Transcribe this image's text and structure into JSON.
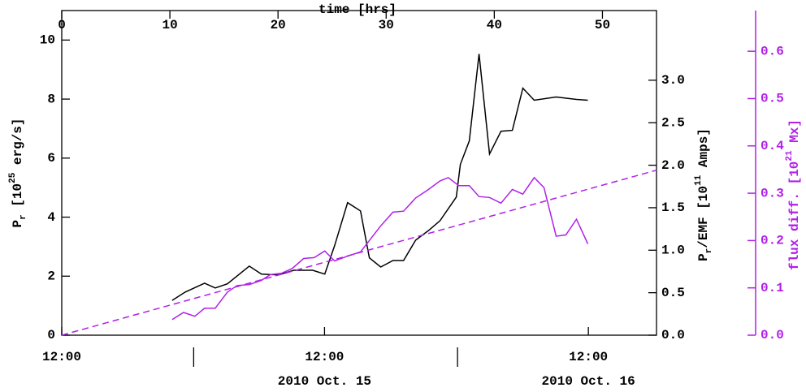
{
  "chart_data": {
    "type": "line",
    "xlabel": "time [hrs]",
    "ylabel": [
      "P",
      "r",
      " [10",
      "25",
      " erg/s]"
    ],
    "y2label": [
      "P",
      "r",
      "/EMF [10",
      "11",
      " Amps]"
    ],
    "y3label": [
      "flux diff. [10",
      "21",
      " Mx]"
    ],
    "y3color": "#b020e8",
    "xlim": [
      0,
      55
    ],
    "xticks": [
      0,
      10,
      20,
      30,
      40,
      50
    ],
    "ylim": [
      0,
      11
    ],
    "yticks": [
      0,
      2,
      4,
      6,
      8,
      10
    ],
    "y2lim": [
      0,
      3.82
    ],
    "y2ticks": [
      {
        "value": 0,
        "label": "0.0"
      },
      {
        "value": 0.5,
        "label": "0.5"
      },
      {
        "value": 1,
        "label": "1.0"
      },
      {
        "value": 1.5,
        "label": "1.5"
      },
      {
        "value": 2,
        "label": "2.0"
      },
      {
        "value": 2.5,
        "label": "2.5"
      },
      {
        "value": 3,
        "label": "3.0"
      }
    ],
    "y3lim": [
      0,
      0.686
    ],
    "y3ticks": [
      {
        "value": 0,
        "label": "0.0"
      },
      {
        "value": 0.1,
        "label": "0.1"
      },
      {
        "value": 0.2,
        "label": "0.2"
      },
      {
        "value": 0.3,
        "label": "0.3"
      },
      {
        "value": 0.4,
        "label": "0.4"
      },
      {
        "value": 0.5,
        "label": "0.5"
      },
      {
        "value": 0.6,
        "label": "0.6"
      }
    ],
    "time_ticks": [
      {
        "value": 0,
        "label": "12:00"
      },
      {
        "value": 24.3,
        "label": "12:00"
      },
      {
        "value": 48.7,
        "label": "12:00"
      }
    ],
    "day_ticks": [
      12.2,
      36.6
    ],
    "dates": [
      {
        "value": 24.3,
        "label": "2010 Oct. 15"
      },
      {
        "value": 48.7,
        "label": "2010 Oct. 16"
      }
    ],
    "series": [
      {
        "color": "#000000",
        "axis": "y",
        "x": [
          10.21,
          11.41,
          13.21,
          14.19,
          15.32,
          17.34,
          18.47,
          20.05,
          21.47,
          23.2,
          24.32,
          25.23,
          26.43,
          27.63,
          28.45,
          29.5,
          30.63,
          31.61,
          32.73,
          33.93,
          34.98,
          36.49,
          36.86,
          37.69,
          38.59,
          39.56,
          40.62,
          41.67,
          42.64,
          43.69,
          45.72,
          47.6,
          48.65
        ],
        "values": [
          1.18,
          1.46,
          1.76,
          1.6,
          1.74,
          2.34,
          2.07,
          2.04,
          2.2,
          2.2,
          2.07,
          3.03,
          4.49,
          4.21,
          2.62,
          2.31,
          2.53,
          2.53,
          3.22,
          3.55,
          3.88,
          4.68,
          5.79,
          6.58,
          9.53,
          6.14,
          6.91,
          6.94,
          8.37,
          7.96,
          8.07,
          7.99,
          7.96
        ]
      },
      {
        "color": "#b020e8",
        "axis": "y3",
        "x": [
          10.21,
          11.26,
          12.31,
          13.21,
          14.19,
          15.32,
          16.22,
          17.34,
          18.47,
          19.29,
          20.35,
          21.32,
          22.37,
          23.35,
          24.32,
          25.23,
          26.43,
          27.63,
          29.5,
          30.63,
          31.61,
          32.73,
          33.86,
          34.98,
          35.74,
          36.71,
          37.69,
          38.59,
          39.56,
          40.62,
          41.67,
          42.64,
          43.69,
          44.59,
          45.72,
          46.62,
          47.6,
          48.65
        ],
        "values": [
          0.033,
          0.048,
          0.04,
          0.057,
          0.057,
          0.091,
          0.105,
          0.107,
          0.116,
          0.128,
          0.131,
          0.141,
          0.162,
          0.164,
          0.178,
          0.157,
          0.167,
          0.176,
          0.231,
          0.26,
          0.262,
          0.29,
          0.307,
          0.326,
          0.333,
          0.316,
          0.316,
          0.293,
          0.291,
          0.279,
          0.308,
          0.298,
          0.333,
          0.312,
          0.209,
          0.212,
          0.245,
          0.193
        ]
      },
      {
        "color": "#b020e8",
        "axis": "y",
        "dash": true,
        "x": [
          0,
          55
        ],
        "values": [
          0,
          5.59
        ]
      }
    ]
  }
}
